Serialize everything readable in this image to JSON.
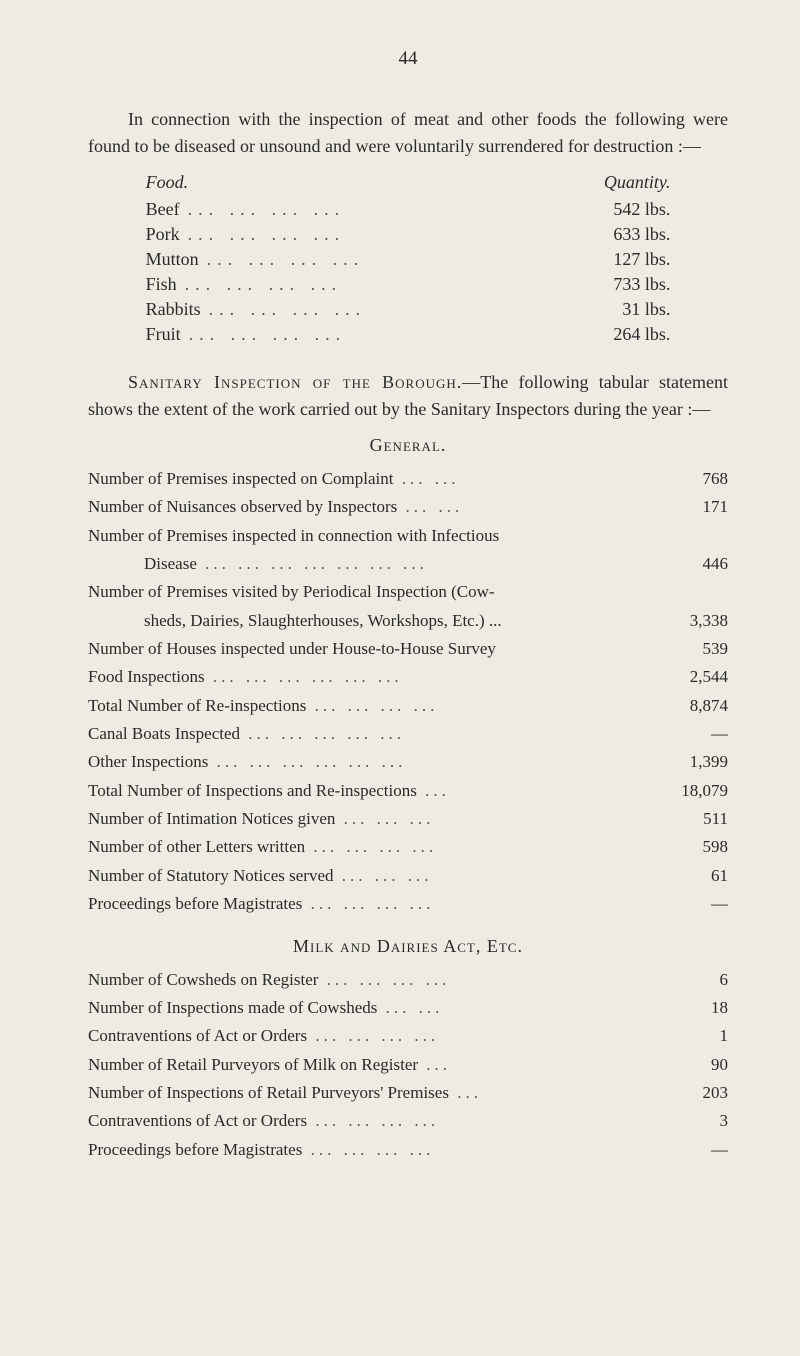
{
  "page_number": "44",
  "intro_paragraph": "In connection with the inspection of meat and other foods the following were found to be diseased or unsound and were voluntarily surrendered for destruction :—",
  "food_table": {
    "header_food": "Food.",
    "header_quantity": "Quantity.",
    "rows": [
      {
        "name": "Beef",
        "qty": "542 lbs."
      },
      {
        "name": "Pork",
        "qty": "633 lbs."
      },
      {
        "name": "Mutton",
        "qty": "127 lbs."
      },
      {
        "name": "Fish",
        "qty": "733 lbs."
      },
      {
        "name": "Rabbits",
        "qty": "31 lbs."
      },
      {
        "name": "Fruit",
        "qty": "264 lbs."
      }
    ]
  },
  "sanitary_paragraph_lead": "Sanitary Inspection of the Borough.",
  "sanitary_paragraph_rest": "—The following tabular statement shows the extent of the work carried out by the Sanitary Inspectors during the year :—",
  "general_heading": "General.",
  "general_rows": [
    {
      "label": "Number of Premises inspected on Complaint",
      "trail": "... ...",
      "value": "768"
    },
    {
      "label": "Number of Nuisances observed by Inspectors",
      "trail": "... ...",
      "value": "171"
    },
    {
      "label": "Number of Premises inspected in connection with Infectious",
      "trail": "",
      "value": ""
    },
    {
      "indent": true,
      "label": "Disease",
      "trail": "... ... ... ... ... ... ...",
      "value": "446"
    },
    {
      "label": "Number of Premises visited by Periodical Inspection (Cow-",
      "trail": "",
      "value": ""
    },
    {
      "indent": true,
      "label": "sheds, Dairies, Slaughterhouses, Workshops, Etc.) ...",
      "trail": "",
      "value": "3,338"
    },
    {
      "label": "Number of Houses inspected under House-to-House Survey",
      "trail": "",
      "value": "539"
    },
    {
      "label": "Food Inspections",
      "trail": "... ... ... ... ... ...",
      "value": "2,544"
    },
    {
      "label": "Total Number of Re-inspections",
      "trail": "... ... ... ...",
      "value": "8,874"
    },
    {
      "label": "Canal Boats Inspected",
      "trail": "... ... ... ... ...",
      "value": "—"
    },
    {
      "label": "Other Inspections",
      "trail": "... ... ... ... ... ...",
      "value": "1,399"
    },
    {
      "label": "Total Number of Inspections and Re-inspections",
      "trail": "...",
      "value": "18,079"
    },
    {
      "label": "Number of Intimation Notices given",
      "trail": "... ... ...",
      "value": "511"
    },
    {
      "label": "Number of other Letters written",
      "trail": "... ... ... ...",
      "value": "598"
    },
    {
      "label": "Number of Statutory Notices served",
      "trail": "... ... ...",
      "value": "61"
    },
    {
      "label": "Proceedings before Magistrates",
      "trail": "... ... ... ...",
      "value": "—"
    }
  ],
  "milk_heading": "Milk and Dairies Act, Etc.",
  "milk_rows": [
    {
      "label": "Number of Cowsheds on Register",
      "trail": "... ... ... ...",
      "value": "6"
    },
    {
      "label": "Number of Inspections made of Cowsheds",
      "trail": "... ...",
      "value": "18"
    },
    {
      "label": "Contraventions of Act or Orders",
      "trail": "... ... ... ...",
      "value": "1"
    },
    {
      "label": "Number of Retail Purveyors of Milk on Register",
      "trail": "...",
      "value": "90"
    },
    {
      "label": "Number of Inspections of Retail Purveyors' Premises",
      "trail": "...",
      "value": "203"
    },
    {
      "label": "Contraventions of Act or Orders",
      "trail": "... ... ... ...",
      "value": "3"
    },
    {
      "label": "Proceedings before Magistrates",
      "trail": "... ... ... ...",
      "value": "—"
    }
  ],
  "colors": {
    "background": "#edebe2",
    "text": "#2a2a2a"
  }
}
